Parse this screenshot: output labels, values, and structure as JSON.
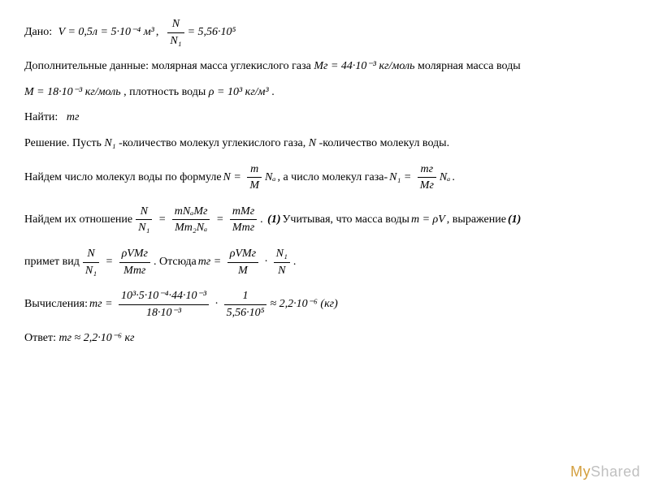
{
  "lines": {
    "given_label": "Дано:",
    "given_eq1": "V = 0,5л = 5·10⁻⁴ м³",
    "given_eq2_lhs_num": "N",
    "given_eq2_lhs_den": "N₁",
    "given_eq2_rhs": "= 5,56·10⁵",
    "add_label": "Дополнительные данные: молярная масса углекислого газа ",
    "add_mg": "Mг = 44·10⁻³ кг/моль",
    "add_tail": " молярная масса воды",
    "add_m": "M = 18·10⁻³ кг/моль",
    "add_rho_label": ", плотность воды ",
    "add_rho": "ρ = 10³ кг/м³",
    "find_label": "Найти:",
    "find_var": "mг",
    "solution_label": "Решение. Пусть ",
    "n1_label": "N₁",
    "n1_desc": "-количество молекул углекислого газа, ",
    "n_label": "N",
    "n_desc": " -количество молекул воды.",
    "find_water": "Найдем число молекул воды по формуле ",
    "eq_n_num": "m",
    "eq_n_den": "M",
    "eq_n_rhs": "Nₐ",
    "gas_label": ", а число молекул газа- ",
    "eq_n1_num": "mг",
    "eq_n1_den": "Mг",
    "ratio_label": "Найдем их отношение ",
    "ratio_lhs_num": "N",
    "ratio_lhs_den": "N₁",
    "ratio_mid_num": "mNₐMг",
    "ratio_mid_den": "Mm₂Nₐ",
    "ratio_rhs_num": "mMг",
    "ratio_rhs_den": "Mmг",
    "ref1": "(1)",
    "ratio_tail": " Учитывая, что масса воды ",
    "mass_eq": "m = ρV",
    "expr_tail": ", выражение ",
    "take_form": "примет вид ",
    "form_num": "ρVMг",
    "form_den": "Mmг",
    "hence": ". Отсюда ",
    "mg_eq_num": "ρVMг",
    "mg_eq_den": "M",
    "mg_eq_tail_num": "N₁",
    "mg_eq_tail_den": "N",
    "calc_label": "Вычисления: ",
    "calc_num": "10³·5·10⁻⁴·44·10⁻³",
    "calc_den": "18·10⁻³",
    "calc_f2_num": "1",
    "calc_f2_den": "5,56·10⁵",
    "calc_result": " ≈ 2,2·10⁻⁶ (кг)",
    "answer_label": "Ответ: ",
    "answer_val": "mг ≈ 2,2·10⁻⁶ кг"
  },
  "watermark": {
    "my": "My",
    "shared": "Shared"
  },
  "style": {
    "font_size": 14,
    "text_color": "#000000",
    "bg_color": "#ffffff",
    "watermark_gray": "#c0c0c0",
    "watermark_gold": "#d4a040"
  }
}
